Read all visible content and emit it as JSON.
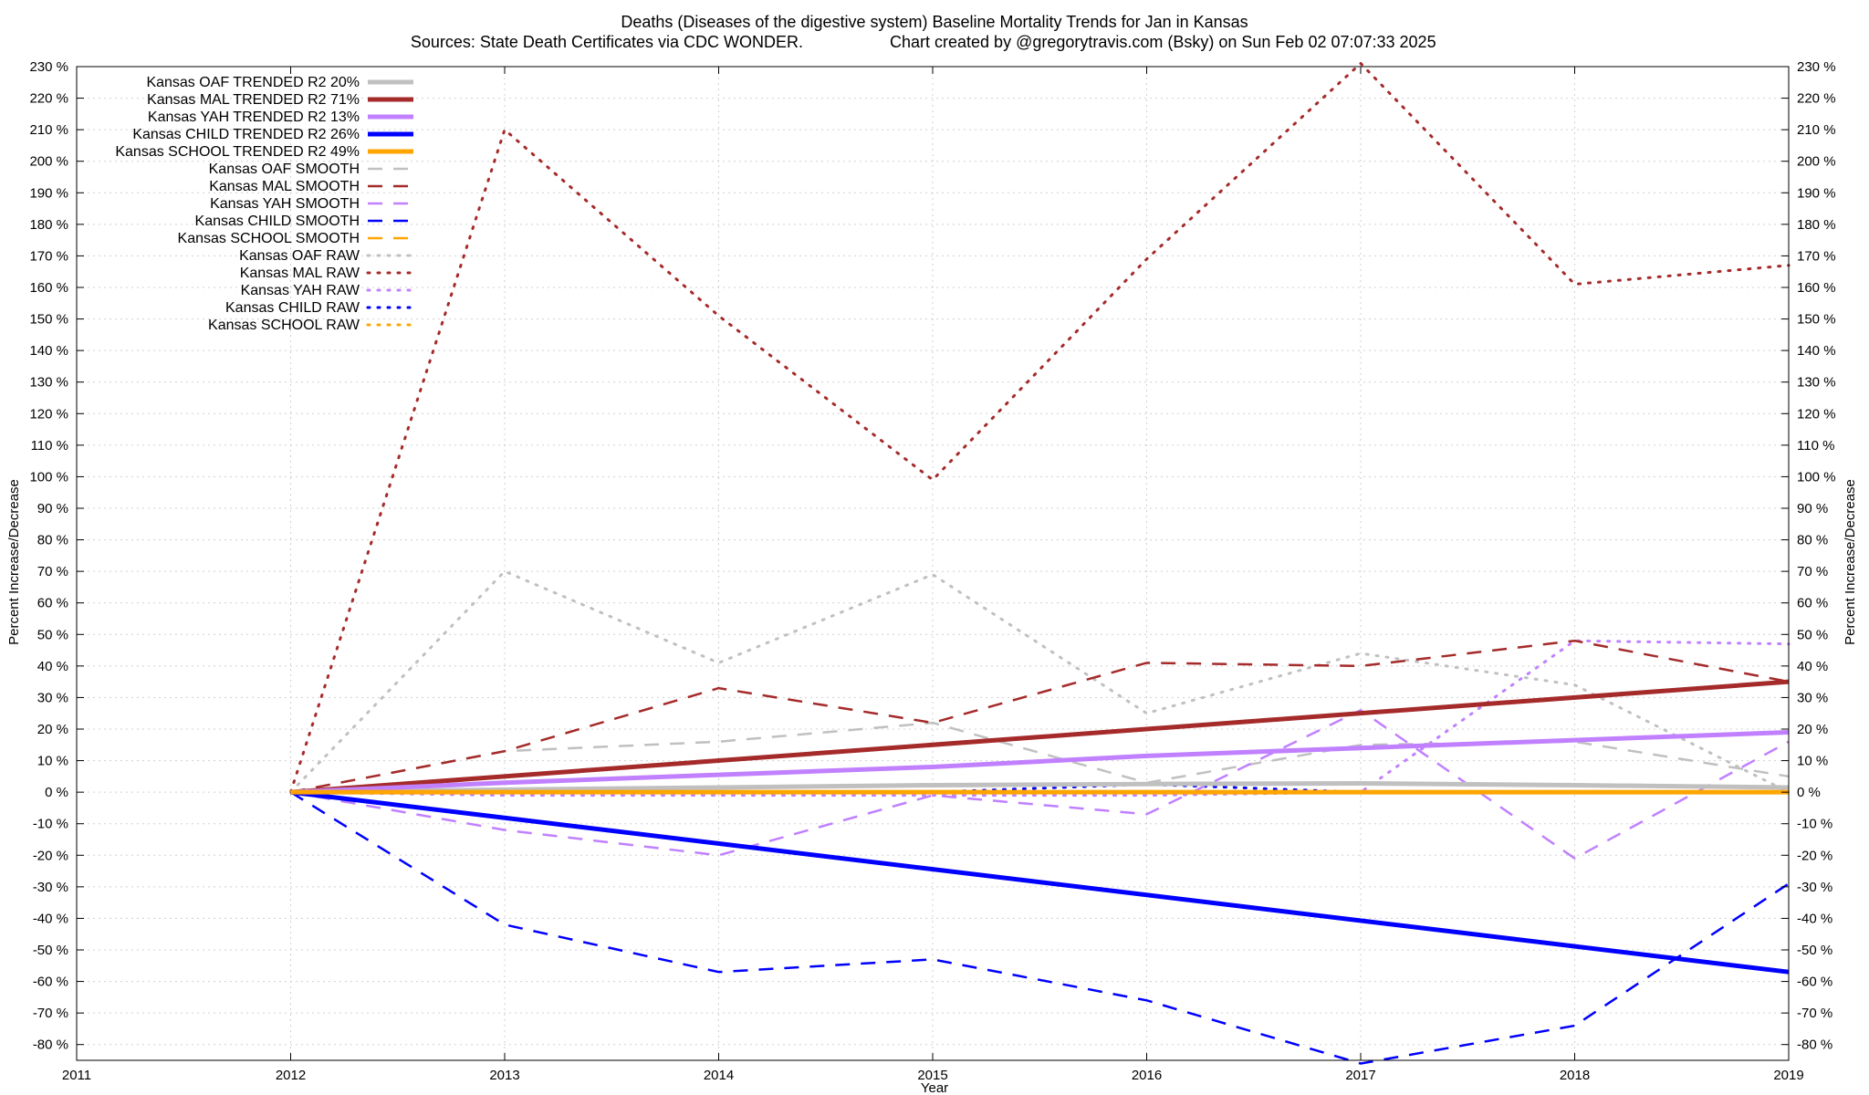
{
  "chart_data": {
    "type": "line",
    "title": "Deaths (Diseases of the digestive system)  Baseline Mortality Trends for Jan in Kansas",
    "subtitle_left": "Sources: State Death Certificates via CDC WONDER.",
    "subtitle_right": "Chart created by @gregorytravis.com (Bsky) on Sun Feb 02 07:07:33 2025",
    "xlabel": "Year",
    "ylabel": "Percent Increase/Decrease",
    "xlim": [
      2011,
      2019
    ],
    "ylim": [
      -85,
      230
    ],
    "x_ticks": [
      "2011",
      "2012",
      "2013",
      "2014",
      "2015",
      "2016",
      "2017",
      "2018",
      "2019"
    ],
    "y_tick_values": [
      -80,
      -70,
      -60,
      -50,
      -40,
      -30,
      -20,
      -10,
      0,
      10,
      20,
      30,
      40,
      50,
      60,
      70,
      80,
      90,
      100,
      110,
      120,
      130,
      140,
      150,
      160,
      170,
      180,
      190,
      200,
      210,
      220,
      230
    ],
    "y_tick_suffix": " %",
    "grid": true,
    "legend_position": "top-left",
    "series": [
      {
        "name": "Kansas OAF TRENDED R2  20%",
        "color": "#c0c0c0",
        "style": "solid",
        "x": [
          2012,
          2013,
          2014,
          2015,
          2016,
          2017,
          2018,
          2019
        ],
        "values": [
          0,
          0.8,
          1.5,
          2.2,
          2.6,
          2.8,
          2.2,
          1.5
        ]
      },
      {
        "name": "Kansas MAL TRENDED R2  71%",
        "color": "#a52a2a",
        "style": "solid",
        "x": [
          2012,
          2019
        ],
        "values": [
          0,
          35
        ]
      },
      {
        "name": "Kansas YAH TRENDED R2  13%",
        "color": "#c080ff",
        "style": "solid",
        "x": [
          2012,
          2013,
          2014,
          2015,
          2016,
          2017,
          2018,
          2019
        ],
        "values": [
          0,
          3,
          5.5,
          8,
          11.5,
          14,
          16.5,
          19
        ]
      },
      {
        "name": "Kansas CHILD TRENDED R2  26%",
        "color": "#0000ff",
        "style": "solid",
        "x": [
          2012,
          2019
        ],
        "values": [
          0,
          -57
        ]
      },
      {
        "name": "Kansas SCHOOL TRENDED R2  49%",
        "color": "#ffa500",
        "style": "solid",
        "x": [
          2012,
          2019
        ],
        "values": [
          0,
          0
        ]
      },
      {
        "name": "Kansas OAF SMOOTH",
        "color": "#c0c0c0",
        "style": "dash",
        "x": [
          2012,
          2013,
          2014,
          2015,
          2016,
          2017,
          2018,
          2019
        ],
        "values": [
          0,
          13,
          16,
          22,
          3,
          15,
          16,
          5
        ]
      },
      {
        "name": "Kansas MAL SMOOTH",
        "color": "#a52a2a",
        "style": "dash",
        "x": [
          2012,
          2013,
          2014,
          2015,
          2016,
          2017,
          2018,
          2019
        ],
        "values": [
          0,
          13,
          33,
          22,
          41,
          40,
          48,
          35
        ]
      },
      {
        "name": "Kansas YAH SMOOTH",
        "color": "#c080ff",
        "style": "dash",
        "x": [
          2012,
          2013,
          2014,
          2015,
          2016,
          2017,
          2018,
          2019
        ],
        "values": [
          0,
          -12,
          -20,
          -1,
          -7,
          26,
          -21,
          16
        ]
      },
      {
        "name": "Kansas CHILD SMOOTH",
        "color": "#0000ff",
        "style": "dash",
        "x": [
          2012,
          2013,
          2014,
          2015,
          2016,
          2017,
          2018,
          2019
        ],
        "values": [
          0,
          -42,
          -57,
          -53,
          -66,
          -86,
          -74,
          -29
        ]
      },
      {
        "name": "Kansas SCHOOL SMOOTH",
        "color": "#ffa500",
        "style": "dash",
        "x": [
          2012,
          2019
        ],
        "values": [
          0,
          0
        ]
      },
      {
        "name": "Kansas OAF RAW",
        "color": "#c0c0c0",
        "style": "dot",
        "x": [
          2012,
          2013,
          2014,
          2015,
          2016,
          2017,
          2018,
          2019
        ],
        "values": [
          0,
          70,
          41,
          69,
          25,
          44,
          34,
          0
        ]
      },
      {
        "name": "Kansas MAL RAW",
        "color": "#a52a2a",
        "style": "dot",
        "x": [
          2012,
          2013,
          2014,
          2015,
          2016,
          2017,
          2018,
          2019
        ],
        "values": [
          0,
          210,
          151,
          99,
          169,
          231,
          161,
          167
        ]
      },
      {
        "name": "Kansas YAH RAW",
        "color": "#c080ff",
        "style": "dot",
        "x": [
          2012,
          2013,
          2014,
          2015,
          2016,
          2017,
          2018,
          2019
        ],
        "values": [
          0,
          -1,
          -1,
          -1,
          -1,
          0,
          48,
          47
        ]
      },
      {
        "name": "Kansas CHILD RAW",
        "color": "#0000ff",
        "style": "dot",
        "x": [
          2012,
          2015,
          2016,
          2017
        ],
        "values": [
          0,
          0,
          2.5,
          0
        ]
      },
      {
        "name": "Kansas SCHOOL RAW",
        "color": "#ffa500",
        "style": "dot",
        "x": [
          2012,
          2019
        ],
        "values": [
          0,
          0
        ]
      }
    ]
  }
}
